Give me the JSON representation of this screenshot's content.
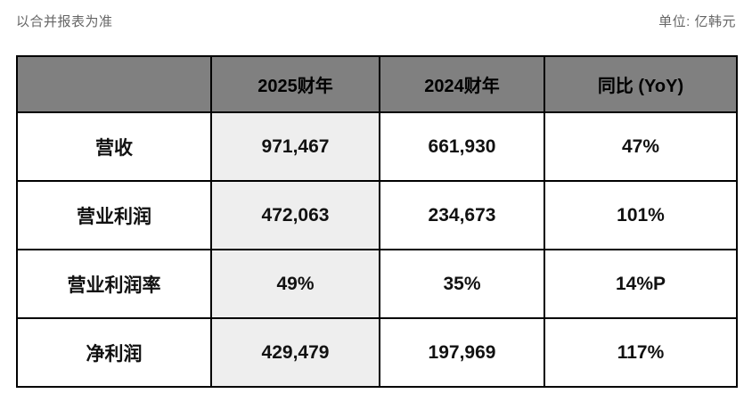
{
  "note": {
    "left": "以合并报表为准",
    "right": "单位: 亿韩元"
  },
  "chart_data": {
    "type": "table",
    "title": "以合并报表为准",
    "unit": "单位: 亿韩元",
    "columns": [
      "",
      "2025财年",
      "2024财年",
      "同比 (YoY)"
    ],
    "rows": [
      [
        "营收",
        "971,467",
        "661,930",
        "47%"
      ],
      [
        "营业利润",
        "472,063",
        "234,673",
        "101%"
      ],
      [
        "营业利润率",
        "49%",
        "35%",
        "14%P"
      ],
      [
        "净利润",
        "429,479",
        "197,969",
        "117%"
      ]
    ],
    "highlight_column": "2025财年",
    "layout": {
      "header_bg": "#808080",
      "highlight_col_bg": "#eeeeee",
      "border_color": "#000000",
      "note_text_color": "#666666"
    }
  }
}
